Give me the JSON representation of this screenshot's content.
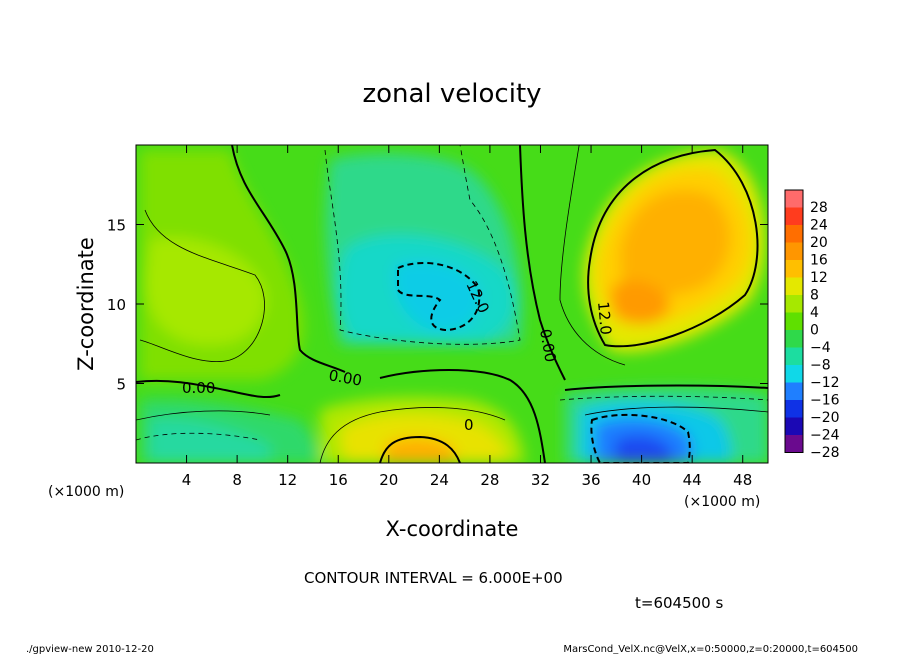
{
  "chart_data": {
    "type": "heatmap",
    "title": "zonal velocity",
    "xlabel": "X-coordinate",
    "ylabel": "Z-coordinate",
    "x_units": "(×1000 m)",
    "y_units": "(×1000 m)",
    "xlim": [
      0,
      50
    ],
    "ylim": [
      0,
      20
    ],
    "x_ticks": [
      "4",
      "8",
      "12",
      "16",
      "20",
      "24",
      "28",
      "32",
      "36",
      "40",
      "44",
      "48"
    ],
    "y_ticks": [
      "5",
      "10",
      "15"
    ],
    "colorbar": {
      "labels": [
        "28",
        "24",
        "20",
        "16",
        "12",
        "8",
        "4",
        "0",
        "−4",
        "−8",
        "−12",
        "−16",
        "−20",
        "−24",
        "−28"
      ],
      "values": [
        28,
        24,
        20,
        16,
        12,
        8,
        4,
        0,
        -4,
        -8,
        -12,
        -16,
        -20,
        -24,
        -28
      ],
      "colors": [
        "#ff6b6b",
        "#ff3c1e",
        "#ff6e00",
        "#ff9600",
        "#ffbf00",
        "#e4e800",
        "#a6e800",
        "#5fe000",
        "#2fd94a",
        "#1cdda0",
        "#10d8e8",
        "#1f7fff",
        "#0f32e6",
        "#1b08b4",
        "#6a0a8e"
      ]
    },
    "contour_labels": [
      "0.00",
      "0.00",
      "0.00",
      "12.0",
      "12.0",
      "0"
    ],
    "contour_interval_text": "CONTOUR INTERVAL = 6.000E+00",
    "time_text": "t=604500 s",
    "grid": false
  },
  "footer": {
    "left": "./gpview-new  2010-12-20",
    "right": "MarsCond_VelX.nc@VelX,x=0:50000,z=0:20000,t=604500"
  }
}
